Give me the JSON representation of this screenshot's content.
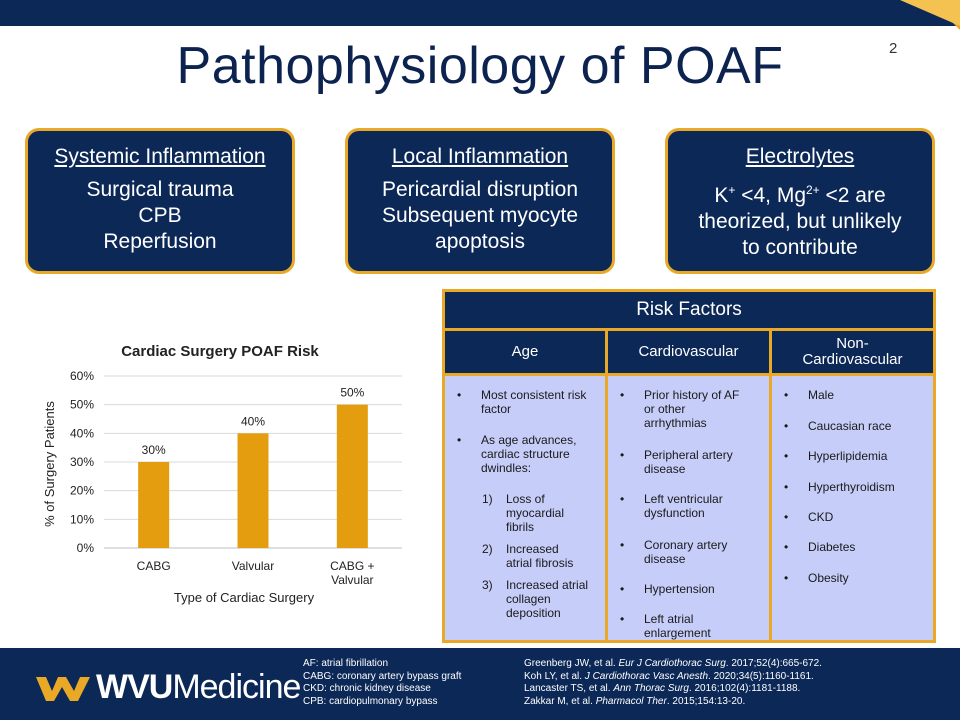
{
  "slide": {
    "title": "Pathophysiology of POAF",
    "page_number": "2"
  },
  "boxes": [
    {
      "heading": "Systemic Inflammation",
      "lines": [
        "Surgical trauma",
        "CPB",
        "Reperfusion"
      ]
    },
    {
      "heading": "Local Inflammation",
      "lines": [
        "Pericardial disruption",
        "Subsequent myocyte",
        "apoptosis"
      ]
    },
    {
      "heading": "Electrolytes",
      "line1_k": "K",
      "line1_k_sup": "+",
      "line1_mid": " <4, Mg",
      "line1_mg_sup": "2+",
      "line1_end": " <2 are",
      "line2": "theorized, but unlikely",
      "line3": "to contribute"
    }
  ],
  "risk_factors": {
    "title": "Risk Factors",
    "columns": [
      {
        "header": "Age",
        "items": [
          "Most consistent risk factor",
          "As age advances, cardiac structure dwindles:"
        ],
        "subitems": [
          {
            "num": "1)",
            "text": "Loss of myocardial fibrils"
          },
          {
            "num": "2)",
            "text": "Increased atrial fibrosis"
          },
          {
            "num": "3)",
            "text": "Increased atrial collagen deposition"
          }
        ]
      },
      {
        "header": "Cardiovascular",
        "items": [
          "Prior history of AF or other arrhythmias",
          "Peripheral artery disease",
          "Left ventricular dysfunction",
          "Coronary artery disease",
          "Hypertension",
          "Left atrial enlargement"
        ]
      },
      {
        "header_line1": "Non-",
        "header_line2": "Cardiovascular",
        "items": [
          "Male",
          "Caucasian race",
          "Hyperlipidemia",
          "Hyperthyroidism",
          "CKD",
          "Diabetes",
          "Obesity"
        ]
      }
    ]
  },
  "chart_data": {
    "type": "bar",
    "title": "Cardiac Surgery POAF Risk",
    "categories": [
      "CABG",
      "Valvular",
      "CABG + Valvular"
    ],
    "category_lines": [
      [
        "CABG"
      ],
      [
        "Valvular"
      ],
      [
        "CABG +",
        "Valvular"
      ]
    ],
    "values": [
      30,
      40,
      50
    ],
    "data_labels": [
      "30%",
      "40%",
      "50%"
    ],
    "xlabel": "Type of Cardiac Surgery",
    "ylabel": "% of Surgery Patients",
    "ylim": [
      0,
      60
    ],
    "yticks": [
      "0%",
      "10%",
      "20%",
      "30%",
      "40%",
      "50%",
      "60%"
    ],
    "grid": true,
    "bar_color": "#e49d0e"
  },
  "footer": {
    "logo_bold": "WVU",
    "logo_rest": "Medicine",
    "abbreviations": [
      "AF: atrial fibrillation",
      "CABG: coronary artery bypass graft",
      "CKD: chronic kidney disease",
      "CPB: cardiopulmonary bypass"
    ],
    "references": [
      {
        "pre": "Greenberg JW, et al. ",
        "journal": "Eur J Cardiothorac Surg",
        "post": ". 2017;52(4):665-672."
      },
      {
        "pre": "Koh LY, et al. ",
        "journal": "J Cardiothorac Vasc Anesth",
        "post": ". 2020;34(5):1160-1161."
      },
      {
        "pre": "Lancaster TS, et al. ",
        "journal": "Ann Thorac Surg",
        "post": ". 2016;102(4):1181-1188."
      },
      {
        "pre": "Zakkar M, et al. ",
        "journal": "Pharmacol Ther",
        "post": ". 2015;154:13-20."
      }
    ]
  },
  "colors": {
    "navy": "#0c2857",
    "gold": "#e9a825",
    "lavender": "#c6cdf9"
  }
}
